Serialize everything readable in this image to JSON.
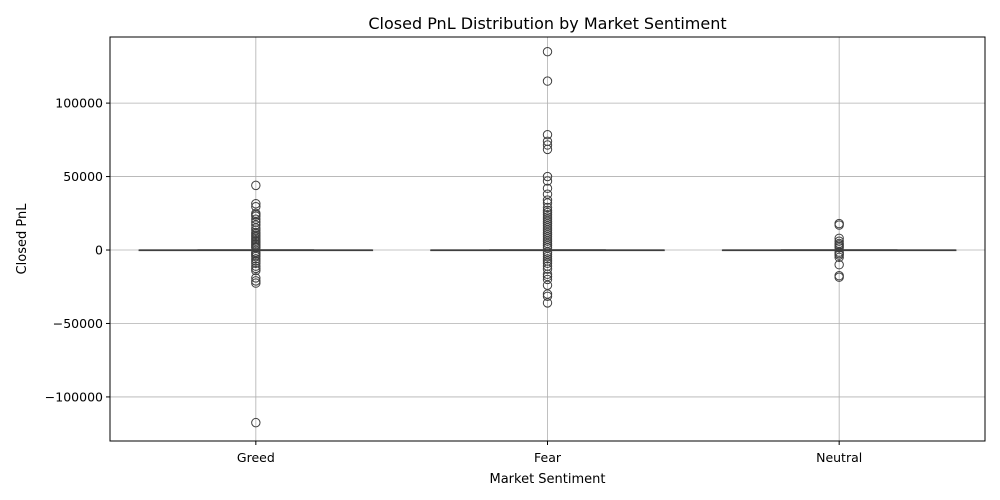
{
  "chart_data": {
    "type": "box",
    "title": "Closed PnL Distribution by Market Sentiment",
    "xlabel": "Market Sentiment",
    "ylabel": "Closed PnL",
    "ylim": [
      -130000,
      145000
    ],
    "yticks": [
      -100000,
      -50000,
      0,
      50000,
      100000
    ],
    "ytick_labels": [
      "−100000",
      "−50000",
      "0",
      "50000",
      "100000"
    ],
    "grid": true,
    "colors": {
      "box_edge": "#3f3f3f",
      "grid": "#b0b0b0"
    },
    "categories": [
      "Greed",
      "Fear",
      "Neutral"
    ],
    "series": [
      {
        "category": "Greed",
        "q1": 0,
        "median": 0,
        "q3": 0,
        "whisker_low": 0,
        "whisker_high": 0,
        "outliers": [
          44000,
          31500,
          29500,
          25000,
          24000,
          23000,
          21000,
          19000,
          17000,
          15000,
          13500,
          12000,
          11000,
          10000,
          9000,
          8000,
          7000,
          6000,
          5000,
          4000,
          3000,
          2000,
          1500,
          -1500,
          -2500,
          -3500,
          -4500,
          -6000,
          -7500,
          -9000,
          -11000,
          -12500,
          -14000,
          -19000,
          -21000,
          -22500,
          -117500
        ]
      },
      {
        "category": "Fear",
        "q1": 0,
        "median": 0,
        "q3": 0,
        "whisker_low": 0,
        "whisker_high": 0,
        "outliers": [
          135000,
          115000,
          78500,
          74000,
          71500,
          68500,
          50000,
          47000,
          42000,
          38000,
          34000,
          32000,
          29000,
          27000,
          25500,
          24000,
          22500,
          21000,
          19500,
          18000,
          16500,
          15000,
          13500,
          12000,
          10500,
          9000,
          7500,
          6000,
          4500,
          3000,
          1500,
          -1500,
          -3000,
          -4500,
          -6000,
          -7500,
          -9000,
          -11000,
          -13000,
          -16500,
          -18000,
          -20000,
          -24000,
          -30000,
          -31500,
          -36000
        ]
      },
      {
        "category": "Neutral",
        "q1": 0,
        "median": 0,
        "q3": 0,
        "whisker_low": 0,
        "whisker_high": 0,
        "outliers": [
          18000,
          17000,
          8000,
          6000,
          4500,
          3500,
          2500,
          1500,
          -1500,
          -2500,
          -3500,
          -5000,
          -10000,
          -17500,
          -18500
        ]
      }
    ]
  }
}
